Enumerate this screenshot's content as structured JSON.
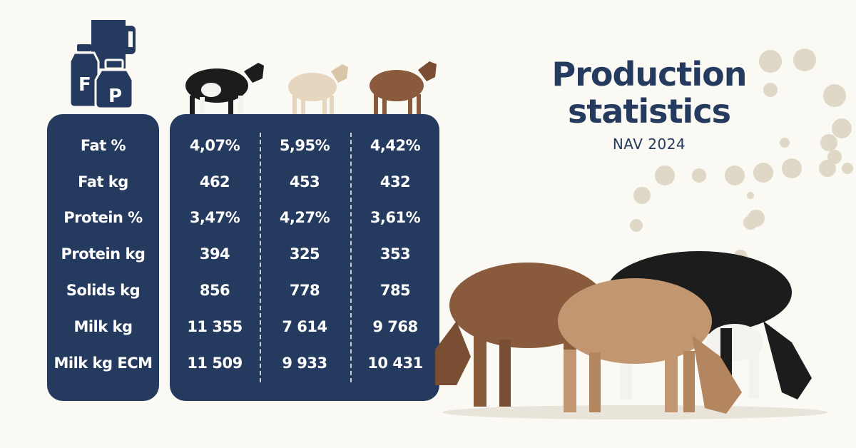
{
  "header": {
    "title_line1": "Production",
    "title_line2": "statistics",
    "subtitle": "NAV 2024"
  },
  "icons": {
    "fat_label": "F",
    "protein_label": "P"
  },
  "table": {
    "rows": [
      {
        "label": "Fat %",
        "values": [
          "4,07%",
          "5,95%",
          "4,42%"
        ]
      },
      {
        "label": "Fat kg",
        "values": [
          "462",
          "453",
          "432"
        ]
      },
      {
        "label": "Protein %",
        "values": [
          "3,47%",
          "4,27%",
          "3,61%"
        ]
      },
      {
        "label": "Protein kg",
        "values": [
          "394",
          "325",
          "353"
        ]
      },
      {
        "label": "Solids kg",
        "values": [
          "856",
          "778",
          "785"
        ]
      },
      {
        "label": "Milk kg",
        "values": [
          "11 355",
          "7 614",
          "9 768"
        ]
      },
      {
        "label": "Milk kg ECM",
        "values": [
          "11 509",
          "9 933",
          "10 431"
        ]
      }
    ]
  },
  "colors": {
    "panel": "#243a5e",
    "background": "#fbf9f4",
    "accent_dots": "#e0d8c6",
    "holstein": "#1c1c1c",
    "jersey": "#e6d6bf",
    "red": "#8a5a3c"
  }
}
